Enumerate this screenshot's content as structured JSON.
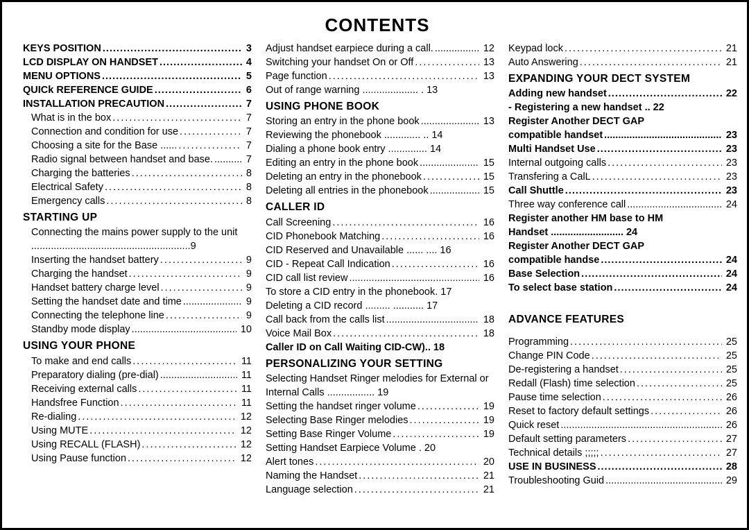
{
  "title": "CONTENTS",
  "columns": [
    {
      "entries": [
        {
          "type": "boldrow",
          "label": "KEYS POSITION",
          "page": "3"
        },
        {
          "type": "boldrow",
          "label": "LCD DISPLAY ON HANDSET",
          "page": "4"
        },
        {
          "type": "boldrow",
          "label": "MENU OPTIONS",
          "page": "5"
        },
        {
          "type": "boldrow",
          "label": "QUICk REFERENCE GUIDE",
          "page": "6"
        },
        {
          "type": "boldrow",
          "label": "INSTALLATION PRECAUTION",
          "page": "7"
        },
        {
          "type": "row",
          "label": "What is in the box",
          "page": "7",
          "sub": true
        },
        {
          "type": "row",
          "label": "Connection and condition for use",
          "page": "7",
          "sub": true
        },
        {
          "type": "row",
          "label": "Choosing a site for the Base  ......",
          "page": "7",
          "sub": true
        },
        {
          "type": "row",
          "label": "Radio signal between handset and base.",
          "page": "7",
          "sub": true,
          "tight": true
        },
        {
          "type": "row",
          "label": "Charging the batteries",
          "page": "8",
          "sub": true
        },
        {
          "type": "row",
          "label": "Electrical Safety",
          "page": "8",
          "sub": true
        },
        {
          "type": "row",
          "label": "Emergency calls",
          "page": "8",
          "sub": true
        },
        {
          "type": "section",
          "label": "STARTING UP"
        },
        {
          "type": "wrap",
          "label": "Connecting the mains power supply to the unit .........................................................9",
          "sub": true
        },
        {
          "type": "row",
          "label": "Inserting the handset battery",
          "page": "9",
          "sub": true
        },
        {
          "type": "row",
          "label": "Charging the handset",
          "page": "9",
          "sub": true
        },
        {
          "type": "row",
          "label": "Handset battery charge level",
          "page": "9",
          "sub": true
        },
        {
          "type": "row",
          "label": "Setting the handset date and time",
          "page": "9",
          "sub": true,
          "tight": true
        },
        {
          "type": "row",
          "label": "Connecting the telephone line",
          "page": "9",
          "sub": true
        },
        {
          "type": "row",
          "label": "Standby mode display",
          "page": "10",
          "sub": true,
          "tight": true
        },
        {
          "type": "section",
          "label": "USING YOUR PHONE"
        },
        {
          "type": "row",
          "label": "To make and end calls",
          "page": "11",
          "sub": true
        },
        {
          "type": "row",
          "label": "Preparatory dialing (pre-dial)",
          "page": "11",
          "sub": true,
          "tight": true
        },
        {
          "type": "row",
          "label": "Receiving external calls",
          "page": "11",
          "sub": true
        },
        {
          "type": "row",
          "label": "Handsfree Function",
          "page": "11",
          "sub": true
        },
        {
          "type": "row",
          "label": "Re-dialing",
          "page": "12",
          "sub": true
        },
        {
          "type": "row",
          "label": "Using MUTE",
          "page": "12",
          "sub": true
        },
        {
          "type": "row",
          "label": "Using RECALL  (FLASH)",
          "page": "12",
          "sub": true
        },
        {
          "type": "row",
          "label": "Using Pause function",
          "page": "12",
          "sub": true
        }
      ]
    },
    {
      "entries": [
        {
          "type": "row",
          "label": "Adjust handset earpiece during a call.",
          "page": "12",
          "tight": true
        },
        {
          "type": "row",
          "label": "Switching your handset On or Off",
          "page": "13"
        },
        {
          "type": "row",
          "label": "Page function",
          "page": "13"
        },
        {
          "type": "row",
          "label": "Out of range warning  .................... .",
          "page": "13",
          "tight": true,
          "nodots": true
        },
        {
          "type": "section",
          "label": "USING PHONE BOOK"
        },
        {
          "type": "row",
          "label": "Storing an entry in the phone book",
          "page": "13",
          "tight": true
        },
        {
          "type": "row",
          "label": "Reviewing the phonebook  ............. ..",
          "page": "14",
          "nodots": true
        },
        {
          "type": "row",
          "label": "Dialing a phone book entry  ..............",
          "page": "14",
          "tight": true,
          "nodots": true
        },
        {
          "type": "row",
          "label": "Editing an entry  in the phone book",
          "page": "15",
          "tight": true
        },
        {
          "type": "row",
          "label": "Deleting an entry in the phonebook",
          "page": "15"
        },
        {
          "type": "row",
          "label": "Deleting all entries in the phonebook",
          "page": "15",
          "tight": true
        },
        {
          "type": "section",
          "label": "CALLER ID"
        },
        {
          "type": "row",
          "label": "Call Screening",
          "page": "16"
        },
        {
          "type": "row",
          "label": "CID Phonebook Matching",
          "page": "16"
        },
        {
          "type": "row",
          "label": "CID Reserved and Unavailable  ...... ....",
          "page": "16",
          "tight": true,
          "nodots": true
        },
        {
          "type": "row",
          "label": "CID - Repeat Call Indication",
          "page": "16"
        },
        {
          "type": "row",
          "label": "CID call list review",
          "page": "16",
          "tight": true
        },
        {
          "type": "row",
          "label": "To store a CID entry in the phonebook.",
          "page": "17",
          "tight": true,
          "nodots": true
        },
        {
          "type": "row",
          "label": "Deleting a CID record  .........  ...........",
          "page": "17",
          "tight": true,
          "nodots": true
        },
        {
          "type": "row",
          "label": "Call back from the calls list",
          "page": "18",
          "tight": true
        },
        {
          "type": "row",
          "label": "Voice Mail Box",
          "page": "18"
        },
        {
          "type": "boldrow",
          "label": "Caller ID on Call Waiting CID-CW)..",
          "page": "18",
          "tight": true,
          "nodots": true
        },
        {
          "type": "section",
          "label": "PERSONALIZING YOUR SETTING"
        },
        {
          "type": "wrap",
          "label": "Selecting Handset Ringer melodies for External or Internal Calls ................. 19"
        },
        {
          "type": "row",
          "label": "Setting the handset ringer volume",
          "page": "19"
        },
        {
          "type": "row",
          "label": "Selecting Base Ringer melodies",
          "page": "19"
        },
        {
          "type": "row",
          "label": "Setting Base Ringer Volume",
          "page": "19"
        },
        {
          "type": "row",
          "label": "Setting Handset Earpiece Volume .",
          "page": "20",
          "tight": true,
          "nodots": true
        },
        {
          "type": "row",
          "label": "Alert tones",
          "page": "20"
        },
        {
          "type": "row",
          "label": "Naming the Handset",
          "page": "21"
        },
        {
          "type": "row",
          "label": "Language selection",
          "page": "21"
        }
      ]
    },
    {
      "entries": [
        {
          "type": "row",
          "label": "Keypad lock",
          "page": "21"
        },
        {
          "type": "row",
          "label": "Auto Answering",
          "page": "21"
        },
        {
          "type": "section",
          "label": "EXPANDING YOUR DECT SYSTEM"
        },
        {
          "type": "boldrow",
          "label": "Adding new handset",
          "page": "22"
        },
        {
          "type": "boldrow",
          "label": "    - Registering a new handset  ..",
          "page": "22",
          "nodots": true
        },
        {
          "type": "boldwrap",
          "label": "Register Another DECT GAP"
        },
        {
          "type": "boldrow",
          "label": "compatible handset",
          "page": "23",
          "tight": true
        },
        {
          "type": "boldrow",
          "label": "Multi Handset Use",
          "page": "23"
        },
        {
          "type": "row",
          "label": "Internal outgoing calls",
          "page": "23"
        },
        {
          "type": "row",
          "label": "Transfering a CalL",
          "page": "23"
        },
        {
          "type": "boldrow",
          "label": "Call Shuttle",
          "page": "23"
        },
        {
          "type": "row",
          "label": "Three way conference call",
          "page": "24",
          "tight": true
        },
        {
          "type": "boldwrap",
          "label": "Register another HM base to  HM"
        },
        {
          "type": "boldrow",
          "label": "Handset  ..........................",
          "page": "24",
          "nodots": true
        },
        {
          "type": "boldwrap",
          "label": "Register Another DECT GAP"
        },
        {
          "type": "boldrow",
          "label": "compatible handse",
          "page": "24"
        },
        {
          "type": "boldrow",
          "label": "Base Selection",
          "page": "24"
        },
        {
          "type": "boldrow",
          "label": "To select base station",
          "page": "24"
        },
        {
          "type": "gap-lg"
        },
        {
          "type": "section",
          "label": "ADVANCE FEATURES"
        },
        {
          "type": "gap"
        },
        {
          "type": "row",
          "label": "Programming",
          "page": "25"
        },
        {
          "type": "row",
          "label": "Change PIN Code",
          "page": "25"
        },
        {
          "type": "row",
          "label": "De-registering a handset",
          "page": "25"
        },
        {
          "type": "row",
          "label": "Redall (Flash) time selection",
          "page": "25"
        },
        {
          "type": "row",
          "label": "Pause time selection",
          "page": "26"
        },
        {
          "type": "row",
          "label": "Reset to factory default settings",
          "page": "26"
        },
        {
          "type": "row",
          "label": "Quick reset",
          "page": "26",
          "tight": true
        },
        {
          "type": "row",
          "label": "Default setting parameters",
          "page": "27"
        },
        {
          "type": "row",
          "label": "Technical details ;;;;;",
          "page": "27"
        },
        {
          "type": "boldrow",
          "label": "USE IN BUSINESS",
          "page": "28"
        },
        {
          "type": "row",
          "label": "Troubleshooting Guid",
          "page": "29",
          "tight": true
        }
      ]
    }
  ]
}
